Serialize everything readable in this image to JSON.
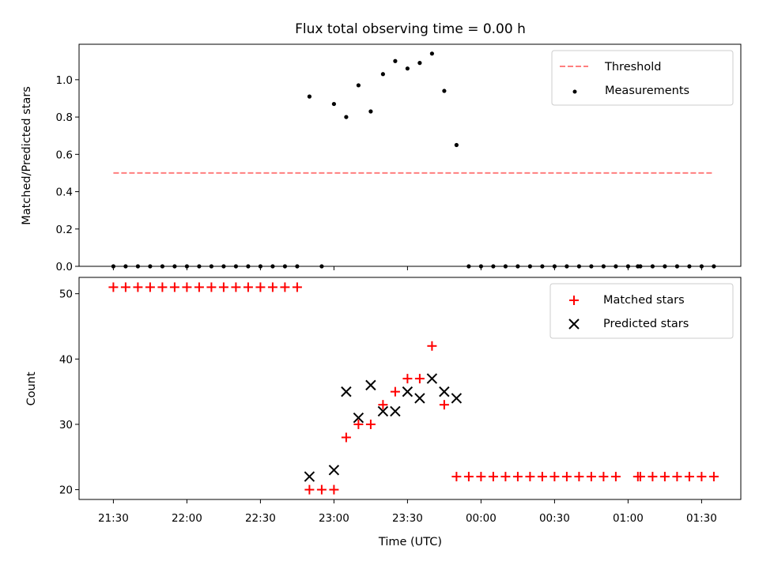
{
  "chart_data": [
    {
      "type": "scatter",
      "title": "Flux total observing time = 0.00 h",
      "xlabel": "",
      "ylabel": "Matched/Predicted stars",
      "ylim": [
        0,
        1.19
      ],
      "yticks": [
        "0.0",
        "0.2",
        "0.4",
        "0.6",
        "0.8",
        "1.0"
      ],
      "xlim": [
        "21:16",
        "01:46"
      ],
      "legend_position": "top-right",
      "series": [
        {
          "name": "Threshold",
          "kind": "line",
          "style": "dashed",
          "color": "#ff7f7f",
          "x": [
            "21:30",
            "01:35"
          ],
          "y": [
            0.5,
            0.5
          ]
        },
        {
          "name": "Measurements",
          "kind": "scatter",
          "marker": "dot",
          "color": "#000000",
          "x": [
            "21:30",
            "21:35",
            "21:40",
            "21:45",
            "21:50",
            "21:55",
            "22:00",
            "22:05",
            "22:10",
            "22:15",
            "22:20",
            "22:25",
            "22:30",
            "22:35",
            "22:40",
            "22:45",
            "22:50",
            "22:55",
            "23:00",
            "23:05",
            "23:10",
            "23:15",
            "23:20",
            "23:25",
            "23:30",
            "23:35",
            "23:40",
            "23:45",
            "23:50",
            "23:55",
            "00:00",
            "00:05",
            "00:10",
            "00:15",
            "00:20",
            "00:25",
            "00:30",
            "00:35",
            "00:40",
            "00:45",
            "00:50",
            "00:55",
            "01:00",
            "01:04",
            "01:05",
            "01:10",
            "01:15",
            "01:20",
            "01:25",
            "01:30",
            "01:35"
          ],
          "y": [
            0,
            0,
            0,
            0,
            0,
            0,
            0,
            0,
            0,
            0,
            0,
            0,
            0,
            0,
            0,
            0,
            0.91,
            0,
            0.87,
            0.8,
            0.97,
            0.83,
            1.03,
            1.1,
            1.06,
            1.09,
            1.14,
            0.94,
            0.65,
            0,
            0,
            0,
            0,
            0,
            0,
            0,
            0,
            0,
            0,
            0,
            0,
            0,
            0,
            0,
            0,
            0,
            0,
            0,
            0,
            0,
            0
          ]
        }
      ]
    },
    {
      "type": "scatter",
      "title": "",
      "xlabel": "Time (UTC)",
      "ylabel": "Count",
      "ylim": [
        18.5,
        52.5
      ],
      "yticks": [
        "20",
        "30",
        "40",
        "50"
      ],
      "xlim": [
        "21:16",
        "01:46"
      ],
      "xticks": [
        "21:30",
        "22:00",
        "22:30",
        "23:00",
        "23:30",
        "00:00",
        "00:30",
        "01:00",
        "01:30"
      ],
      "legend_position": "top-right",
      "series": [
        {
          "name": "Matched stars",
          "kind": "scatter",
          "marker": "plus",
          "color": "#ff0000",
          "x": [
            "21:30",
            "21:35",
            "21:40",
            "21:45",
            "21:50",
            "21:55",
            "22:00",
            "22:05",
            "22:10",
            "22:15",
            "22:20",
            "22:25",
            "22:30",
            "22:35",
            "22:40",
            "22:45",
            "22:50",
            "22:55",
            "23:00",
            "23:05",
            "23:10",
            "23:15",
            "23:20",
            "23:25",
            "23:30",
            "23:35",
            "23:40",
            "23:45",
            "23:50",
            "23:55",
            "00:00",
            "00:05",
            "00:10",
            "00:15",
            "00:20",
            "00:25",
            "00:30",
            "00:35",
            "00:40",
            "00:45",
            "00:50",
            "00:55",
            "01:04",
            "01:05",
            "01:10",
            "01:15",
            "01:20",
            "01:25",
            "01:30",
            "01:35"
          ],
          "y": [
            51,
            51,
            51,
            51,
            51,
            51,
            51,
            51,
            51,
            51,
            51,
            51,
            51,
            51,
            51,
            51,
            20,
            20,
            20,
            28,
            30,
            30,
            33,
            35,
            37,
            37,
            42,
            33,
            22,
            22,
            22,
            22,
            22,
            22,
            22,
            22,
            22,
            22,
            22,
            22,
            22,
            22,
            22,
            22,
            22,
            22,
            22,
            22,
            22,
            22
          ]
        },
        {
          "name": "Predicted stars",
          "kind": "scatter",
          "marker": "x",
          "color": "#000000",
          "x": [
            "22:50",
            "23:00",
            "23:05",
            "23:10",
            "23:15",
            "23:20",
            "23:25",
            "23:30",
            "23:35",
            "23:40",
            "23:45",
            "23:50"
          ],
          "y": [
            22,
            23,
            35,
            31,
            36,
            32,
            32,
            35,
            34,
            37,
            35,
            34
          ]
        }
      ]
    }
  ]
}
